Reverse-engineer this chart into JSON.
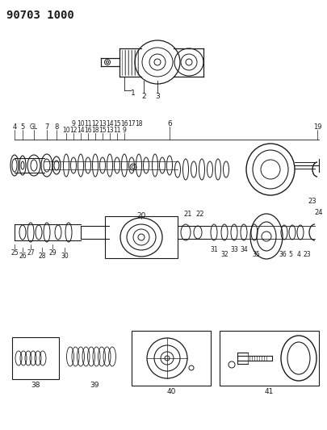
{
  "title_code": "90703 1000",
  "bg_color": "#ffffff",
  "line_color": "#1a1a1a",
  "title_fontsize": 10,
  "label_fontsize": 6.5,
  "fig_width": 4.05,
  "fig_height": 5.33,
  "dpi": 100
}
